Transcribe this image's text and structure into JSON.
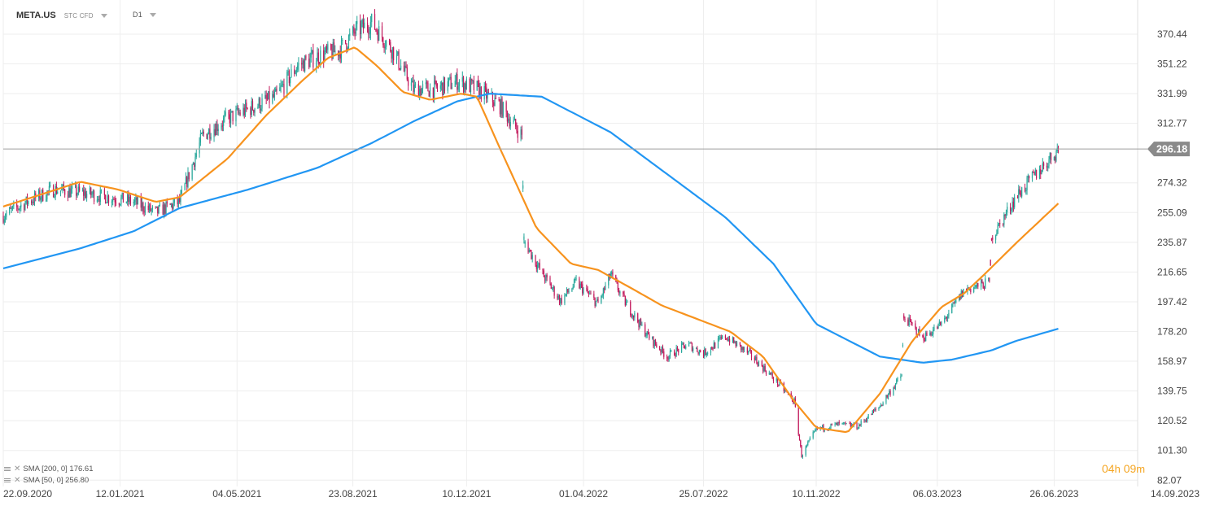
{
  "header": {
    "symbol": "META.US",
    "instrument_type": "STC CFD",
    "timeframe": "D1"
  },
  "legend": [
    {
      "label": "SMA [200, 0] 176.61",
      "color": "#2196f3"
    },
    {
      "label": "SMA [50, 0] 256.80",
      "color": "#f7931e"
    }
  ],
  "timer": {
    "hours": "04",
    "h_unit": "h",
    "minutes": "09",
    "m_unit": "m"
  },
  "colors": {
    "up": "#26a69a",
    "down": "#c2185b",
    "sma200": "#2196f3",
    "sma50": "#f7931e",
    "grid": "#eeeeee",
    "price_line": "#9e9e9e"
  },
  "chart_data": {
    "type": "candlestick",
    "symbol": "META.US",
    "timeframe": "D1",
    "last_price": 296.18,
    "y_ticks": [
      370.44,
      351.22,
      331.99,
      312.77,
      274.32,
      255.09,
      235.87,
      216.65,
      197.42,
      178.2,
      158.97,
      139.75,
      120.52,
      101.3,
      82.07
    ],
    "x_ticks": [
      "22.09.2020",
      "12.01.2021",
      "04.05.2021",
      "23.08.2021",
      "10.12.2021",
      "01.04.2022",
      "25.07.2022",
      "10.11.2022",
      "06.03.2023",
      "26.06.2023",
      "14.09.2023"
    ],
    "close_series": {
      "x": [
        "2020-09-22",
        "2020-10-15",
        "2020-11-10",
        "2020-12-05",
        "2021-01-01",
        "2021-01-25",
        "2021-02-15",
        "2021-03-10",
        "2021-04-01",
        "2021-04-25",
        "2021-05-15",
        "2021-06-10",
        "2021-07-01",
        "2021-07-20",
        "2021-08-10",
        "2021-08-25",
        "2021-09-10",
        "2021-09-30",
        "2021-10-20",
        "2021-11-10",
        "2021-12-01",
        "2021-12-20",
        "2022-01-10",
        "2022-02-01",
        "2022-02-03",
        "2022-02-20",
        "2022-03-10",
        "2022-03-25",
        "2022-04-15",
        "2022-04-27",
        "2022-05-10",
        "2022-06-01",
        "2022-06-20",
        "2022-07-10",
        "2022-07-25",
        "2022-08-15",
        "2022-09-10",
        "2022-09-30",
        "2022-10-20",
        "2022-10-27",
        "2022-11-10",
        "2022-12-01",
        "2022-12-20",
        "2023-01-10",
        "2023-01-31",
        "2023-02-02",
        "2023-02-20",
        "2023-03-10",
        "2023-04-01",
        "2023-04-25",
        "2023-04-27",
        "2023-05-20",
        "2023-06-10",
        "2023-06-30"
      ],
      "close": [
        253,
        262,
        270,
        268,
        265,
        262,
        255,
        262,
        305,
        316,
        322,
        330,
        350,
        356,
        360,
        372,
        378,
        360,
        335,
        335,
        340,
        335,
        325,
        305,
        237,
        216,
        198,
        210,
        196,
        215,
        198,
        176,
        162,
        170,
        164,
        175,
        162,
        148,
        133,
        98,
        115,
        118,
        117,
        130,
        150,
        188,
        174,
        183,
        205,
        210,
        238,
        265,
        281,
        296
      ]
    },
    "sma200": {
      "x": [
        "2020-09-22",
        "2020-12-05",
        "2021-01-25",
        "2021-03-10",
        "2021-05-15",
        "2021-07-20",
        "2021-09-10",
        "2021-10-20",
        "2021-12-01",
        "2022-01-01",
        "2022-02-20",
        "2022-04-27",
        "2022-06-20",
        "2022-08-15",
        "2022-09-30",
        "2022-11-10",
        "2023-01-10",
        "2023-02-20",
        "2023-03-20",
        "2023-04-27",
        "2023-05-20",
        "2023-06-30"
      ],
      "values": [
        219,
        232,
        243,
        258,
        270,
        284,
        300,
        314,
        327,
        332,
        330,
        307,
        280,
        252,
        222,
        183,
        162,
        158,
        160,
        166,
        172,
        180
      ]
    },
    "sma50": {
      "x": [
        "2020-09-22",
        "2020-10-20",
        "2020-12-05",
        "2021-01-10",
        "2021-02-15",
        "2021-03-10",
        "2021-04-25",
        "2021-06-01",
        "2021-07-05",
        "2021-07-30",
        "2021-08-25",
        "2021-09-15",
        "2021-10-10",
        "2021-11-05",
        "2021-12-05",
        "2021-12-20",
        "2022-01-10",
        "2022-02-15",
        "2022-03-20",
        "2022-04-15",
        "2022-05-20",
        "2022-06-15",
        "2022-07-20",
        "2022-08-20",
        "2022-09-20",
        "2022-10-20",
        "2022-11-10",
        "2022-12-10",
        "2023-01-10",
        "2023-02-10",
        "2023-03-10",
        "2023-04-01",
        "2023-04-20",
        "2023-05-20",
        "2023-06-30"
      ],
      "values": [
        259,
        265,
        275,
        270,
        262,
        265,
        290,
        318,
        340,
        355,
        362,
        350,
        333,
        328,
        332,
        330,
        298,
        245,
        222,
        218,
        205,
        195,
        186,
        178,
        162,
        133,
        116,
        113,
        138,
        172,
        194,
        203,
        215,
        235,
        261
      ]
    },
    "ylim": [
      78,
      382
    ],
    "xlim": [
      "2020-09-22",
      "2023-09-14"
    ],
    "grid": true
  }
}
